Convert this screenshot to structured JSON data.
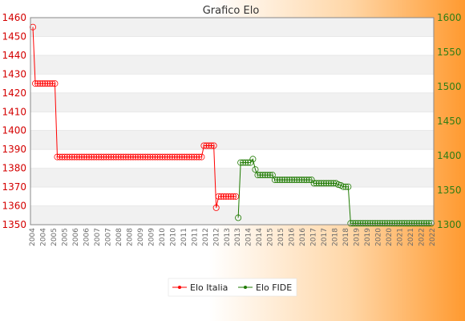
{
  "chart_data": {
    "type": "line",
    "title": "Grafico Elo",
    "grid": true,
    "legend_position": "bottom-center",
    "y_left": {
      "min": 1350,
      "max": 1460,
      "ticks": [
        1350,
        1360,
        1370,
        1380,
        1390,
        1400,
        1410,
        1420,
        1430,
        1440,
        1450,
        1460
      ]
    },
    "y_right": {
      "min": 1300,
      "max": 1600,
      "ticks": [
        1300,
        1350,
        1400,
        1450,
        1500,
        1550,
        1600
      ]
    },
    "x_tick_labels": [
      "2004",
      "2004",
      "2005",
      "2005",
      "2006",
      "2006",
      "2007",
      "2007",
      "2008",
      "2008",
      "2009",
      "2009",
      "2010",
      "2010",
      "2011",
      "2011",
      "2012",
      "2012",
      "2013",
      "2013",
      "2014",
      "2014",
      "2015",
      "2015",
      "2016",
      "2016",
      "2017",
      "2017",
      "2018",
      "2018",
      "2019",
      "2019",
      "2020",
      "2020",
      "2021",
      "2021",
      "2022",
      "2022"
    ],
    "series": [
      {
        "name": "Elo Italia",
        "color": "#ff0000",
        "axis": "left",
        "values": [
          1455,
          1425,
          1425,
          1425,
          1425,
          1425,
          1425,
          1425,
          1425,
          1425,
          1386,
          1386,
          1386,
          1386,
          1386,
          1386,
          1386,
          1386,
          1386,
          1386,
          1386,
          1386,
          1386,
          1386,
          1386,
          1386,
          1386,
          1386,
          1386,
          1386,
          1386,
          1386,
          1386,
          1386,
          1386,
          1386,
          1386,
          1386,
          1386,
          1386,
          1386,
          1386,
          1386,
          1386,
          1386,
          1386,
          1386,
          1386,
          1386,
          1386,
          1386,
          1386,
          1386,
          1386,
          1386,
          1386,
          1386,
          1386,
          1386,
          1386,
          1386,
          1386,
          1386,
          1386,
          1386,
          1386,
          1386,
          1386,
          1386,
          1386,
          1392,
          1392,
          1392,
          1392,
          1392,
          1359,
          1365,
          1365,
          1365,
          1365,
          1365,
          1365,
          1365,
          1365
        ]
      },
      {
        "name": "Elo FIDE",
        "color": "#1e7a00",
        "axis": "right",
        "start_index": 84,
        "values": [
          1310,
          1390,
          1390,
          1390,
          1390,
          1390,
          1395,
          1380,
          1372,
          1372,
          1372,
          1372,
          1372,
          1372,
          1372,
          1365,
          1365,
          1365,
          1365,
          1365,
          1365,
          1365,
          1365,
          1365,
          1365,
          1365,
          1365,
          1365,
          1365,
          1365,
          1365,
          1360,
          1360,
          1360,
          1360,
          1360,
          1360,
          1360,
          1360,
          1360,
          1360,
          1358,
          1357,
          1355,
          1355,
          1355,
          1302,
          1302,
          1302,
          1302,
          1302,
          1302,
          1302,
          1302,
          1302,
          1302,
          1302,
          1302,
          1302,
          1302,
          1302,
          1302,
          1302,
          1302,
          1302,
          1302,
          1302,
          1302,
          1302,
          1302,
          1302,
          1302,
          1302,
          1302,
          1302,
          1302,
          1302,
          1302,
          1302,
          1302
        ]
      }
    ]
  }
}
